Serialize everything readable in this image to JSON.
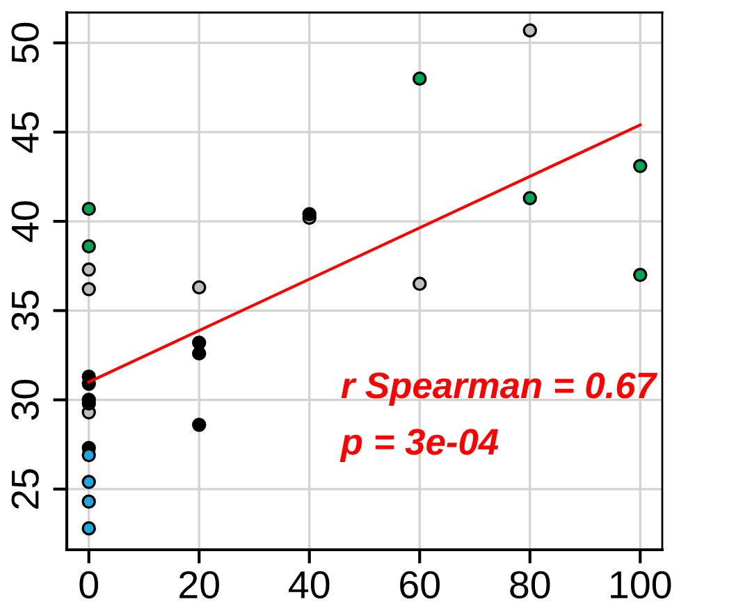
{
  "chart_data": {
    "type": "scatter",
    "xlim": [
      -4,
      104
    ],
    "ylim": [
      21.6,
      51.7
    ],
    "xticks": [
      0,
      20,
      40,
      60,
      80,
      100
    ],
    "yticks": [
      25,
      30,
      35,
      40,
      45,
      50
    ],
    "grid": true,
    "marker": "circle",
    "series": [
      {
        "color": "#00a651",
        "x": [
          0,
          0,
          60,
          80,
          100,
          100
        ],
        "values": [
          40.7,
          38.6,
          48.0,
          41.3,
          43.1,
          37.0
        ]
      },
      {
        "color": "#bebebe",
        "x": [
          0,
          0,
          0,
          20,
          40,
          60,
          80
        ],
        "values": [
          37.3,
          36.2,
          29.3,
          36.3,
          40.2,
          36.5,
          50.7
        ]
      },
      {
        "color": "#000000",
        "x": [
          0,
          0,
          0,
          0,
          0,
          20,
          20,
          20,
          40
        ],
        "values": [
          31.3,
          30.9,
          30.0,
          29.8,
          27.3,
          33.2,
          32.6,
          28.6,
          40.4
        ]
      },
      {
        "color": "#1ea7e1",
        "x": [
          0,
          0,
          0,
          0
        ],
        "values": [
          26.9,
          25.4,
          24.3,
          22.8
        ]
      },
      {
        "type": "line",
        "color": "#ff0000",
        "x": [
          0,
          100
        ],
        "values": [
          31.0,
          45.4
        ],
        "marker": "none"
      }
    ],
    "annotations": [
      "r Spearman = 0.67",
      "p = 3e-04"
    ]
  }
}
